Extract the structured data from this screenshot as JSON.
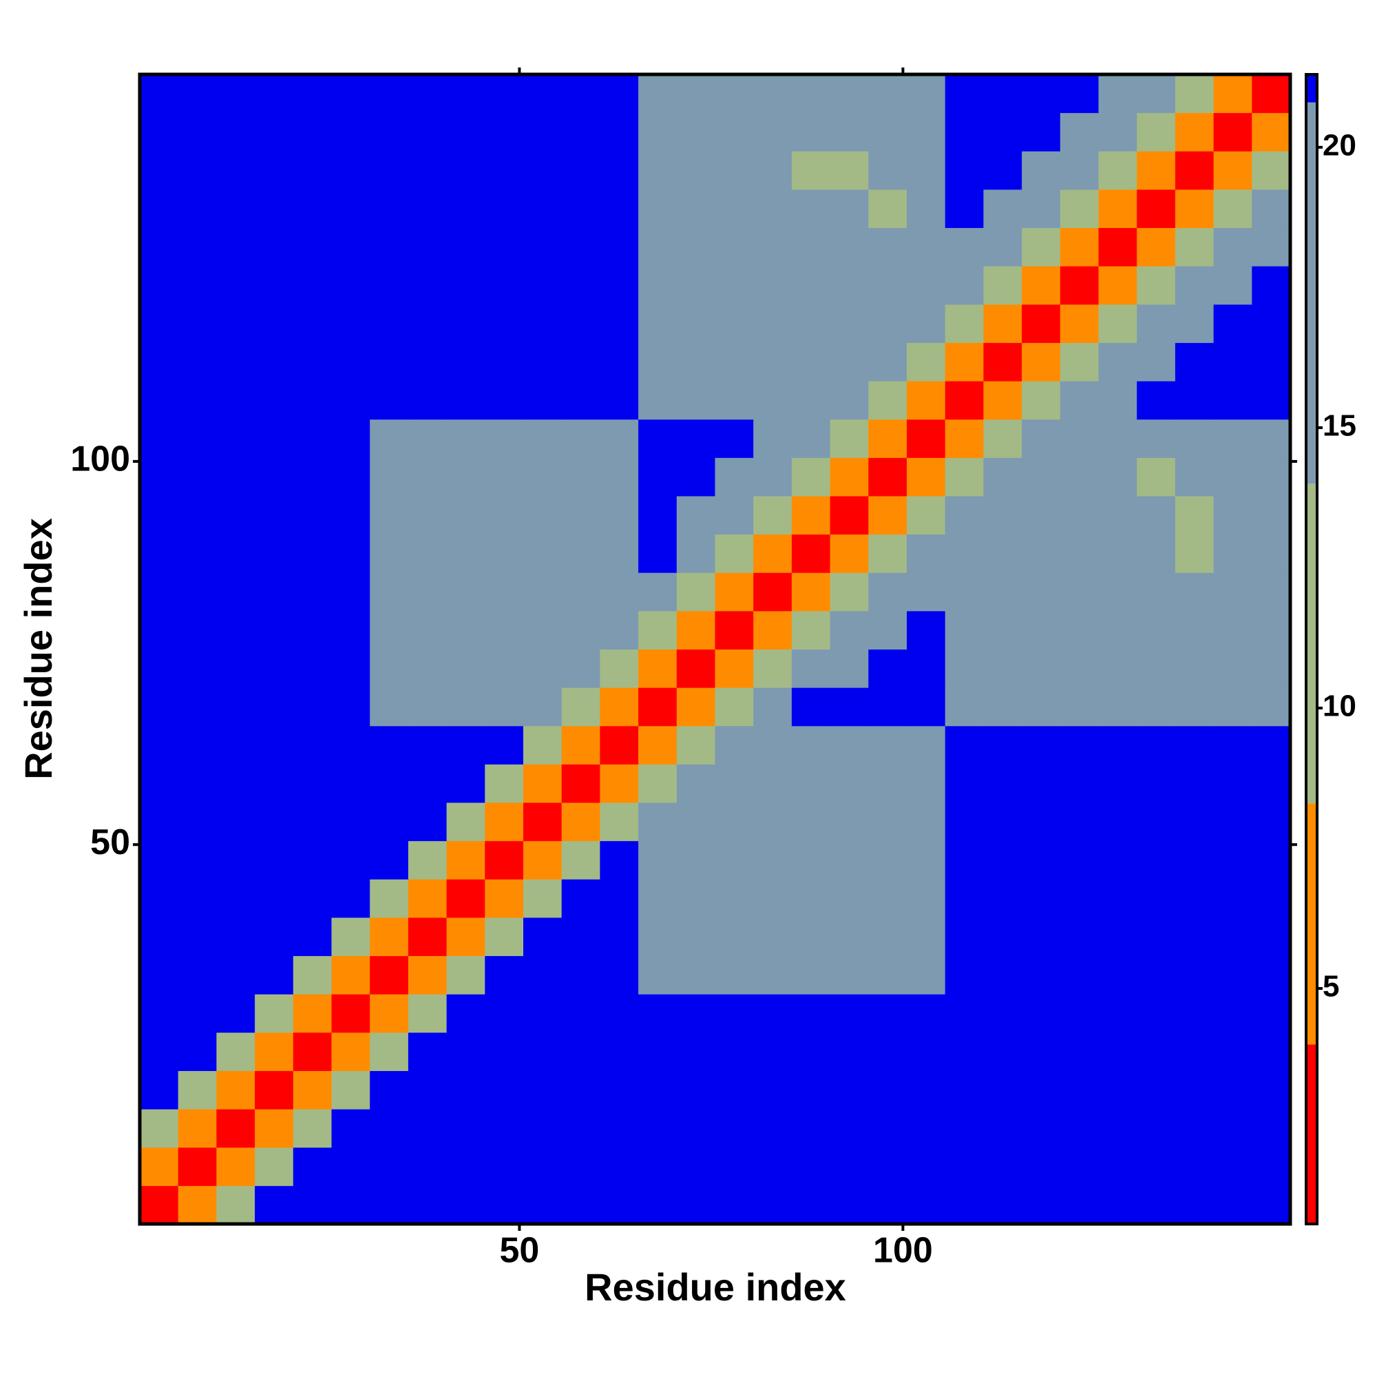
{
  "chart_data": {
    "type": "heatmap",
    "xlabel": "Residue index",
    "ylabel": "Residue index",
    "xlim": [
      0.5,
      150.5
    ],
    "ylim": [
      0.5,
      150.5
    ],
    "xticks": [
      50,
      100
    ],
    "yticks": [
      50,
      100
    ],
    "xbins": [
      0.5,
      5.5,
      10.5,
      15.5,
      20.5,
      25.5,
      30.5,
      35.5,
      40.5,
      45.5,
      50.5,
      55.5,
      60.5,
      65.5,
      70.5,
      75.5,
      80.5,
      85.5,
      90.5,
      95.5,
      100.5,
      105.5,
      110.5,
      115.5,
      120.5,
      125.5,
      130.5,
      135.5,
      140.5,
      145.5,
      150.5
    ],
    "ybins": [
      0.5,
      5.5,
      10.5,
      15.5,
      20.5,
      25.5,
      30.5,
      35.5,
      40.5,
      45.5,
      50.5,
      55.5,
      60.5,
      65.5,
      70.5,
      75.5,
      80.5,
      85.5,
      90.5,
      95.5,
      100.5,
      105.5,
      110.5,
      115.5,
      120.5,
      125.5,
      130.5,
      135.5,
      140.5,
      145.5,
      150.5
    ],
    "zlim": [
      0.8,
      21.3
    ],
    "zticks": [
      5,
      10,
      15,
      20
    ],
    "levels": [
      0.8,
      4,
      8.3,
      14,
      20.8,
      21.3
    ],
    "colors": [
      "#ff0000",
      "#ff8c00",
      "#a3ba86",
      "#7d9ab0",
      "#0000f0"
    ],
    "values": [
      [
        3,
        8,
        13,
        22,
        22,
        22,
        22,
        22,
        22,
        22,
        22,
        22,
        22,
        22,
        22,
        22,
        22,
        22,
        22,
        22,
        22,
        22,
        22,
        22,
        22,
        22,
        22,
        22,
        22,
        22
      ],
      [
        8,
        3,
        8,
        13,
        22,
        22,
        22,
        22,
        22,
        22,
        22,
        22,
        22,
        22,
        22,
        22,
        22,
        22,
        22,
        22,
        22,
        22,
        22,
        22,
        22,
        22,
        22,
        22,
        22,
        22
      ],
      [
        13,
        8,
        3,
        8,
        13,
        22,
        22,
        22,
        22,
        22,
        22,
        22,
        22,
        22,
        22,
        22,
        22,
        22,
        22,
        22,
        22,
        22,
        22,
        22,
        22,
        22,
        22,
        22,
        22,
        22
      ],
      [
        22,
        13,
        8,
        3,
        8,
        13,
        22,
        22,
        22,
        22,
        22,
        22,
        22,
        22,
        22,
        22,
        22,
        22,
        22,
        22,
        22,
        22,
        22,
        22,
        22,
        22,
        22,
        22,
        22,
        22
      ],
      [
        22,
        22,
        13,
        8,
        3,
        8,
        13,
        22,
        22,
        22,
        22,
        22,
        22,
        22,
        22,
        22,
        22,
        22,
        22,
        22,
        22,
        22,
        22,
        22,
        22,
        22,
        22,
        22,
        22,
        22
      ],
      [
        22,
        22,
        22,
        13,
        8,
        3,
        8,
        13,
        22,
        22,
        22,
        22,
        22,
        22,
        22,
        22,
        22,
        22,
        22,
        22,
        22,
        22,
        22,
        22,
        22,
        22,
        22,
        22,
        22,
        22
      ],
      [
        22,
        22,
        22,
        22,
        13,
        8,
        3,
        8,
        13,
        22,
        22,
        22,
        22,
        19,
        19,
        19,
        19,
        19,
        19,
        19,
        19,
        22,
        22,
        22,
        22,
        22,
        22,
        22,
        22,
        22
      ],
      [
        22,
        22,
        22,
        22,
        22,
        13,
        8,
        3,
        8,
        13,
        22,
        22,
        22,
        19,
        19,
        19,
        19,
        19,
        19,
        19,
        19,
        22,
        22,
        22,
        22,
        22,
        22,
        22,
        22,
        22
      ],
      [
        22,
        22,
        22,
        22,
        22,
        22,
        13,
        8,
        3,
        8,
        13,
        22,
        22,
        19,
        19,
        19,
        19,
        19,
        19,
        19,
        19,
        22,
        22,
        22,
        22,
        22,
        22,
        22,
        22,
        22
      ],
      [
        22,
        22,
        22,
        22,
        22,
        22,
        22,
        13,
        8,
        3,
        8,
        13,
        22,
        19,
        19,
        19,
        19,
        19,
        19,
        19,
        19,
        22,
        22,
        22,
        22,
        22,
        22,
        22,
        22,
        22
      ],
      [
        22,
        22,
        22,
        22,
        22,
        22,
        22,
        22,
        13,
        8,
        3,
        8,
        13,
        19,
        19,
        19,
        19,
        19,
        19,
        19,
        19,
        22,
        22,
        22,
        22,
        22,
        22,
        22,
        22,
        22
      ],
      [
        22,
        22,
        22,
        22,
        22,
        22,
        22,
        22,
        22,
        13,
        8,
        3,
        8,
        13,
        19,
        19,
        19,
        19,
        19,
        19,
        19,
        22,
        22,
        22,
        22,
        22,
        22,
        22,
        22,
        22
      ],
      [
        22,
        22,
        22,
        22,
        22,
        22,
        22,
        22,
        22,
        22,
        13,
        8,
        3,
        8,
        13,
        17,
        19,
        19,
        19,
        19,
        19,
        22,
        22,
        22,
        22,
        22,
        22,
        22,
        22,
        22
      ],
      [
        22,
        22,
        22,
        22,
        22,
        22,
        19,
        19,
        19,
        19,
        19,
        13,
        8,
        3,
        8,
        13,
        17,
        22,
        22,
        22,
        22,
        17,
        17,
        17,
        17,
        17,
        17,
        17,
        17,
        17
      ],
      [
        22,
        22,
        22,
        22,
        22,
        22,
        19,
        19,
        19,
        19,
        19,
        19,
        13,
        8,
        3,
        8,
        13,
        17,
        19,
        22,
        22,
        17,
        17,
        17,
        17,
        17,
        17,
        17,
        17,
        17
      ],
      [
        22,
        22,
        22,
        22,
        22,
        22,
        19,
        19,
        19,
        19,
        19,
        19,
        17,
        13,
        8,
        3,
        8,
        13,
        17,
        19,
        22,
        17,
        17,
        17,
        17,
        17,
        17,
        17,
        17,
        17
      ],
      [
        22,
        22,
        22,
        22,
        22,
        22,
        19,
        19,
        19,
        19,
        19,
        19,
        19,
        17,
        13,
        8,
        3,
        8,
        13,
        17,
        19,
        17,
        17,
        17,
        17,
        17,
        17,
        17,
        17,
        17
      ],
      [
        22,
        22,
        22,
        22,
        22,
        22,
        19,
        19,
        19,
        19,
        19,
        19,
        19,
        22,
        17,
        13,
        8,
        3,
        8,
        13,
        17,
        19,
        17,
        17,
        17,
        17,
        17,
        10,
        17,
        17
      ],
      [
        22,
        22,
        22,
        22,
        22,
        22,
        19,
        19,
        19,
        19,
        19,
        19,
        19,
        22,
        19,
        17,
        13,
        8,
        3,
        8,
        13,
        17,
        19,
        17,
        17,
        17,
        17,
        10,
        17,
        17
      ],
      [
        22,
        22,
        22,
        22,
        22,
        22,
        19,
        19,
        19,
        19,
        19,
        19,
        19,
        22,
        22,
        19,
        17,
        13,
        8,
        3,
        8,
        13,
        17,
        19,
        17,
        17,
        10,
        17,
        17,
        17
      ],
      [
        22,
        22,
        22,
        22,
        22,
        22,
        19,
        19,
        19,
        19,
        19,
        19,
        19,
        22,
        22,
        22,
        19,
        17,
        13,
        8,
        3,
        8,
        13,
        17,
        19,
        17,
        17,
        17,
        17,
        17
      ],
      [
        22,
        22,
        22,
        22,
        22,
        22,
        22,
        22,
        22,
        22,
        22,
        22,
        22,
        17,
        17,
        17,
        17,
        19,
        17,
        13,
        8,
        3,
        8,
        13,
        17,
        19,
        22,
        22,
        22,
        22
      ],
      [
        22,
        22,
        22,
        22,
        22,
        22,
        22,
        22,
        22,
        22,
        22,
        22,
        22,
        17,
        17,
        17,
        17,
        17,
        19,
        17,
        13,
        8,
        3,
        8,
        13,
        17,
        19,
        22,
        22,
        22
      ],
      [
        22,
        22,
        22,
        22,
        22,
        22,
        22,
        22,
        22,
        22,
        22,
        22,
        22,
        17,
        17,
        17,
        17,
        17,
        17,
        19,
        17,
        13,
        8,
        3,
        8,
        13,
        17,
        19,
        22,
        22
      ],
      [
        22,
        22,
        22,
        22,
        22,
        22,
        22,
        22,
        22,
        22,
        22,
        22,
        22,
        17,
        17,
        17,
        17,
        17,
        17,
        17,
        19,
        17,
        13,
        8,
        3,
        8,
        13,
        17,
        19,
        22
      ],
      [
        22,
        22,
        22,
        22,
        22,
        22,
        22,
        22,
        22,
        22,
        22,
        22,
        22,
        17,
        17,
        17,
        17,
        17,
        17,
        17,
        17,
        19,
        17,
        13,
        8,
        3,
        8,
        13,
        17,
        19
      ],
      [
        22,
        22,
        22,
        22,
        22,
        22,
        22,
        22,
        22,
        22,
        22,
        22,
        22,
        17,
        17,
        17,
        17,
        17,
        17,
        10,
        17,
        22,
        19,
        17,
        13,
        8,
        3,
        8,
        13,
        17
      ],
      [
        22,
        22,
        22,
        22,
        22,
        22,
        22,
        22,
        22,
        22,
        22,
        22,
        22,
        17,
        17,
        17,
        17,
        10,
        10,
        17,
        17,
        22,
        22,
        19,
        17,
        13,
        8,
        3,
        8,
        13
      ],
      [
        22,
        22,
        22,
        22,
        22,
        22,
        22,
        22,
        22,
        22,
        22,
        22,
        22,
        17,
        17,
        17,
        17,
        17,
        17,
        17,
        17,
        22,
        22,
        22,
        19,
        17,
        13,
        8,
        3,
        8
      ],
      [
        22,
        22,
        22,
        22,
        22,
        22,
        22,
        22,
        22,
        22,
        22,
        22,
        22,
        17,
        17,
        17,
        17,
        17,
        17,
        17,
        17,
        22,
        22,
        22,
        22,
        19,
        17,
        13,
        8,
        3
      ]
    ]
  }
}
